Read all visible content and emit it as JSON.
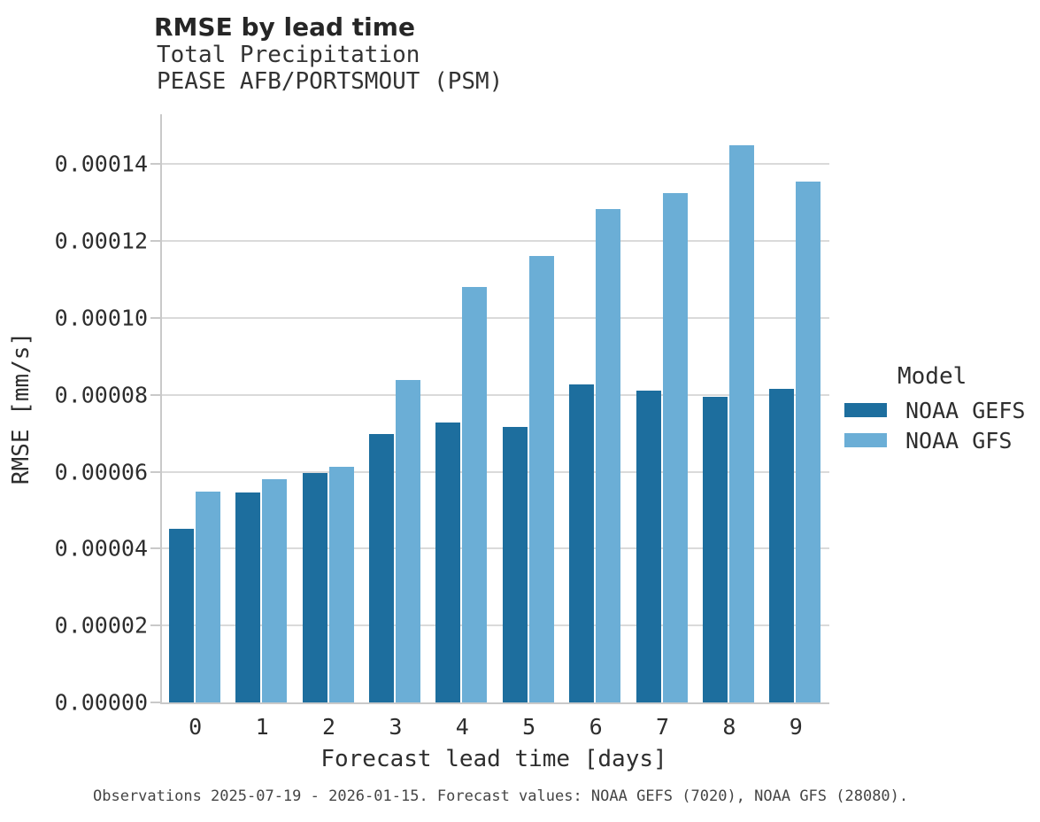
{
  "header": {
    "title": "RMSE by lead time",
    "subtitle_line1": "Total Precipitation",
    "subtitle_line2": "PEASE AFB/PORTSMOUT (PSM)"
  },
  "legend": {
    "title": "Model"
  },
  "footer": {
    "text": "Observations 2025-07-19 - 2026-01-15. Forecast values: NOAA GEFS (7020), NOAA GFS (28080)."
  },
  "colors": {
    "gefs": "#1d6e9e",
    "gfs": "#6baed6",
    "gridline": "#dadada",
    "spine": "#c9c9c9"
  },
  "chart_data": {
    "type": "bar",
    "title": "RMSE by lead time",
    "xlabel": "Forecast lead time [days]",
    "ylabel": "RMSE [mm/s]",
    "categories": [
      "0",
      "1",
      "2",
      "3",
      "4",
      "5",
      "6",
      "7",
      "8",
      "9"
    ],
    "series": [
      {
        "name": "NOAA GEFS",
        "color": "#1d6e9e",
        "values": [
          4.52e-05,
          5.46e-05,
          5.96e-05,
          6.99e-05,
          7.29e-05,
          7.16e-05,
          8.28e-05,
          8.12e-05,
          7.95e-05,
          8.16e-05
        ]
      },
      {
        "name": "NOAA GFS",
        "color": "#6baed6",
        "values": [
          5.49e-05,
          5.81e-05,
          6.13e-05,
          8.39e-05,
          0.0001081,
          0.0001161,
          0.0001284,
          0.0001324,
          0.000145,
          0.0001355
        ]
      }
    ],
    "ylim": [
      0,
      0.000153
    ],
    "yticks": [
      {
        "label": "0.00000",
        "value": 0.0
      },
      {
        "label": "0.00002",
        "value": 2e-05
      },
      {
        "label": "0.00004",
        "value": 4e-05
      },
      {
        "label": "0.00006",
        "value": 6e-05
      },
      {
        "label": "0.00008",
        "value": 8e-05
      },
      {
        "label": "0.00010",
        "value": 0.0001
      },
      {
        "label": "0.00012",
        "value": 0.00012
      },
      {
        "label": "0.00014",
        "value": 0.00014
      }
    ],
    "grid": "horizontal",
    "legend_position": "right",
    "legend_title": "Model"
  }
}
